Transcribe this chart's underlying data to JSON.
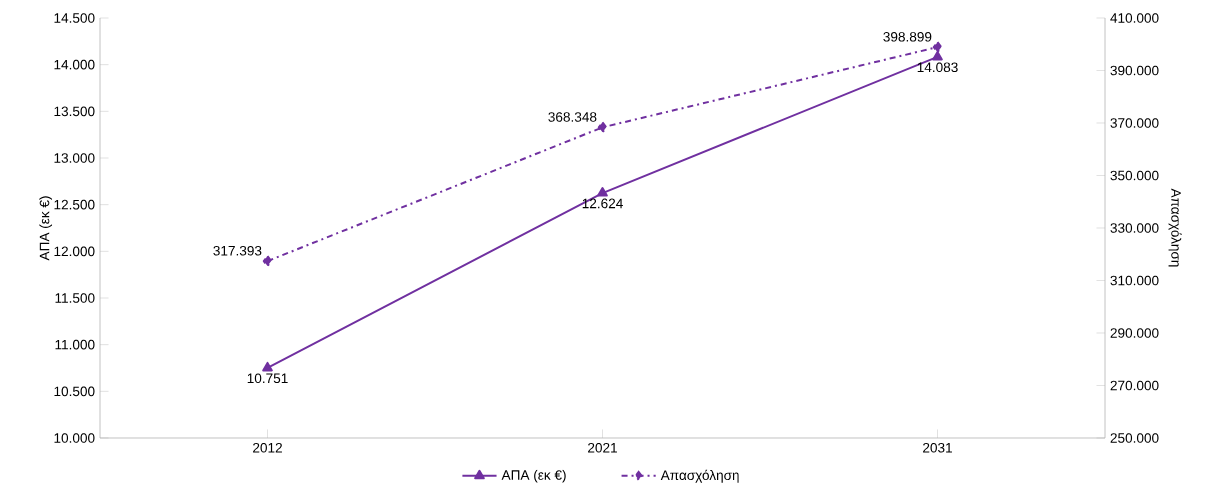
{
  "chart_data": {
    "type": "line",
    "categories": [
      "2012",
      "2021",
      "2031"
    ],
    "ylabel": "ΑΠΑ (εκ €)",
    "y2label": "Απασχόληση",
    "ylim": [
      10000,
      14500
    ],
    "yticks": [
      {
        "value": 10000,
        "label": "10.000"
      },
      {
        "value": 10500,
        "label": "10.500"
      },
      {
        "value": 11000,
        "label": "11.000"
      },
      {
        "value": 11500,
        "label": "11.500"
      },
      {
        "value": 12000,
        "label": "12.000"
      },
      {
        "value": 12500,
        "label": "12.500"
      },
      {
        "value": 13000,
        "label": "13.000"
      },
      {
        "value": 13500,
        "label": "13.500"
      },
      {
        "value": 14000,
        "label": "14.000"
      },
      {
        "value": 14500,
        "label": "14.500"
      }
    ],
    "y2lim": [
      250000,
      410000
    ],
    "y2ticks": [
      {
        "value": 250000,
        "label": "250.000"
      },
      {
        "value": 270000,
        "label": "270.000"
      },
      {
        "value": 290000,
        "label": "290.000"
      },
      {
        "value": 310000,
        "label": "310.000"
      },
      {
        "value": 330000,
        "label": "330.000"
      },
      {
        "value": 350000,
        "label": "350.000"
      },
      {
        "value": 370000,
        "label": "370.000"
      },
      {
        "value": 390000,
        "label": "390.000"
      },
      {
        "value": 410000,
        "label": "410.000"
      }
    ],
    "legend": "bottom",
    "grid": false,
    "series": [
      {
        "name": "ΑΠΑ (εκ €)",
        "color": "#7030a0",
        "values": [
          10751,
          12624,
          14083
        ],
        "value_labels": [
          "10.751",
          "12.624",
          "14.083"
        ],
        "marker": "triangle",
        "line_style": "solid"
      },
      {
        "name": "Απασχόληση",
        "color": "#7030a0",
        "values": [
          317393,
          368348,
          398899
        ],
        "value_labels": [
          "317.393",
          "368.348",
          "398.899"
        ],
        "marker": "diamond",
        "line_style": "dashed",
        "axis": "y2"
      }
    ]
  }
}
